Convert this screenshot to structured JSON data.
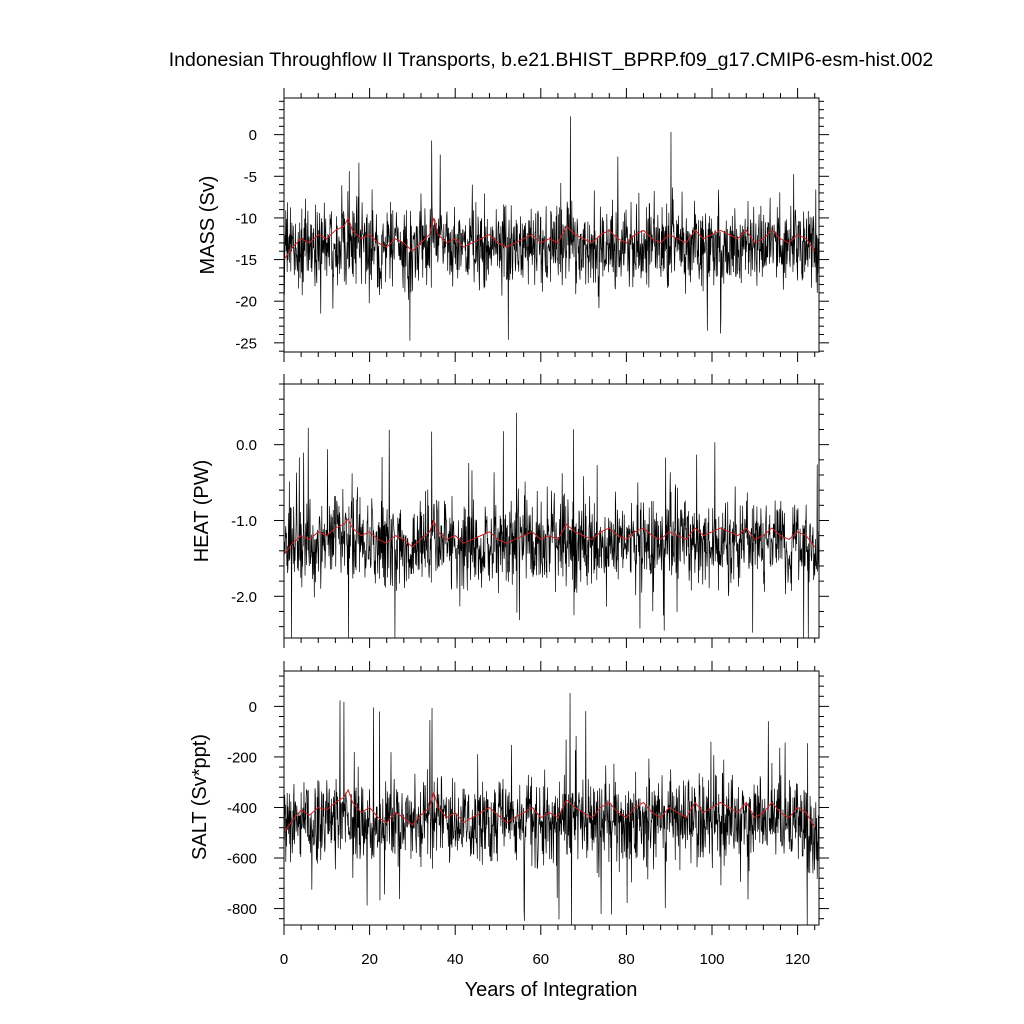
{
  "chart_data": {
    "type": "line",
    "title": "Indonesian Throughflow II Transports, b.e21.BHIST_BPRP.f09_g17.CMIP6-esm-hist.002",
    "xlabel": "Years of Integration",
    "xlim": [
      0,
      125
    ],
    "x_ticks": [
      "0",
      "20",
      "40",
      "60",
      "80",
      "100",
      "120"
    ],
    "panels": [
      {
        "ylabel": "MASS (Sv)",
        "ylim": [
          -26.1,
          4.4
        ],
        "y_ticks": [
          "0",
          "-5",
          "-10",
          "-15",
          "-20",
          "-25"
        ],
        "series": [
          {
            "name": "",
            "color": "#000000",
            "style": "monthly",
            "x": [
              0.5,
              5,
              9.5,
              14.5,
              20,
              24.5,
              30.5,
              35.5,
              40.5,
              45.5,
              50.5,
              55.5,
              60.5,
              65.5,
              70.5,
              75.5,
              78,
              82.5,
              90.5,
              99.5,
              110.5,
              120.5,
              124.5
            ],
            "y": [
              -13.5,
              -14,
              -13,
              -12.5,
              -14,
              -13.5,
              -14,
              -12.5,
              -13.5,
              -14,
              -13.5,
              -13,
              -14,
              -13,
              -13.5,
              -14,
              -13,
              -13.5,
              -13,
              -14,
              -13,
              -13.5,
              -15
            ]
          },
          {
            "name": "",
            "color": "#cc2222",
            "style": "annual",
            "x": [
              0,
              2,
              4,
              6,
              8,
              10,
              12,
              14,
              15,
              16,
              18,
              20,
              22,
              24,
              26,
              28,
              30,
              32,
              34,
              35,
              36,
              38,
              40,
              42,
              44,
              46,
              48,
              50,
              52,
              54,
              56,
              58,
              60,
              62,
              64,
              66,
              68,
              70,
              72,
              74,
              76,
              78,
              80,
              82,
              84,
              86,
              88,
              90,
              92,
              94,
              96,
              98,
              100,
              102,
              104,
              106,
              108,
              110,
              112,
              114,
              116,
              118,
              120,
              122,
              124
            ],
            "y": [
              -15,
              -13.5,
              -12.5,
              -13,
              -12,
              -12.5,
              -11.5,
              -11,
              -10,
              -11.5,
              -12.5,
              -12,
              -13,
              -13.5,
              -12.5,
              -13,
              -14,
              -13,
              -12,
              -10,
              -12,
              -13,
              -12.5,
              -13.5,
              -13,
              -12.5,
              -12,
              -13,
              -13.5,
              -13,
              -12.5,
              -12,
              -13,
              -12.5,
              -13,
              -11,
              -12,
              -12.5,
              -13,
              -12,
              -11.5,
              -12.5,
              -13,
              -12,
              -11.5,
              -12.5,
              -13,
              -12,
              -12.5,
              -13,
              -11.5,
              -12.5,
              -12,
              -11.5,
              -12,
              -12.5,
              -11.5,
              -13,
              -12.5,
              -11.5,
              -12.5,
              -13,
              -12,
              -12.5,
              -14
            ]
          }
        ]
      },
      {
        "ylabel": "HEAT (PW)",
        "ylim": [
          -2.55,
          0.8
        ],
        "y_ticks": [
          "0.0",
          "-1.0",
          "-2.0"
        ],
        "series": [
          {
            "name": "",
            "color": "#000000",
            "style": "monthly",
            "x": [
              0.5,
              5,
              9.5,
              14.5,
              20,
              24.5,
              30.5,
              35.5,
              40.5,
              45.5,
              50.5,
              55.5,
              60.5,
              65.5,
              70.5,
              75.5,
              78,
              82.5,
              90.5,
              99.5,
              110.5,
              120.5,
              124.5
            ],
            "y": [
              -1.3,
              -1.35,
              -1.25,
              -1.2,
              -1.35,
              -1.3,
              -1.35,
              -1.2,
              -1.3,
              -1.35,
              -1.3,
              -1.25,
              -1.35,
              -1.25,
              -1.3,
              -1.35,
              -1.25,
              -1.3,
              -1.25,
              -1.35,
              -1.25,
              -1.3,
              -1.5
            ]
          },
          {
            "name": "",
            "color": "#cc2222",
            "style": "annual",
            "x": [
              0,
              2,
              4,
              6,
              8,
              10,
              12,
              14,
              15,
              16,
              18,
              20,
              22,
              24,
              26,
              28,
              30,
              32,
              34,
              35,
              36,
              38,
              40,
              42,
              44,
              46,
              48,
              50,
              52,
              54,
              56,
              58,
              60,
              62,
              64,
              66,
              68,
              70,
              72,
              74,
              76,
              78,
              80,
              82,
              84,
              86,
              88,
              90,
              92,
              94,
              96,
              98,
              100,
              102,
              104,
              106,
              108,
              110,
              112,
              114,
              116,
              118,
              120,
              122,
              124
            ],
            "y": [
              -1.45,
              -1.3,
              -1.2,
              -1.25,
              -1.15,
              -1.2,
              -1.1,
              -1.05,
              -0.98,
              -1.1,
              -1.2,
              -1.15,
              -1.25,
              -1.3,
              -1.2,
              -1.25,
              -1.35,
              -1.25,
              -1.15,
              -1.0,
              -1.15,
              -1.25,
              -1.2,
              -1.3,
              -1.25,
              -1.2,
              -1.15,
              -1.25,
              -1.3,
              -1.25,
              -1.2,
              -1.15,
              -1.25,
              -1.2,
              -1.25,
              -1.05,
              -1.15,
              -1.2,
              -1.25,
              -1.15,
              -1.1,
              -1.2,
              -1.25,
              -1.15,
              -1.1,
              -1.2,
              -1.25,
              -1.15,
              -1.2,
              -1.25,
              -1.1,
              -1.2,
              -1.15,
              -1.1,
              -1.15,
              -1.2,
              -1.1,
              -1.25,
              -1.2,
              -1.1,
              -1.2,
              -1.25,
              -1.15,
              -1.2,
              -1.35
            ]
          }
        ]
      },
      {
        "ylabel": "SALT (Sv*ppt)",
        "ylim": [
          -865,
          140
        ],
        "y_ticks": [
          "0",
          "-200",
          "-400",
          "-600",
          "-800"
        ],
        "series": [
          {
            "name": "",
            "color": "#000000",
            "style": "monthly",
            "x": [
              0.5,
              5,
              9.5,
              14.5,
              20,
              24.5,
              30.5,
              35.5,
              40.5,
              45.5,
              50.5,
              55.5,
              60.5,
              65.5,
              70.5,
              75.5,
              78,
              82.5,
              90.5,
              99.5,
              110.5,
              120.5,
              124.5
            ],
            "y": [
              -450,
              -470,
              -440,
              -420,
              -470,
              -455,
              -470,
              -420,
              -450,
              -470,
              -455,
              -440,
              -470,
              -440,
              -455,
              -470,
              -440,
              -455,
              -440,
              -470,
              -440,
              -455,
              -520
            ]
          },
          {
            "name": "",
            "color": "#cc2222",
            "style": "annual",
            "x": [
              0,
              2,
              4,
              6,
              8,
              10,
              12,
              14,
              15,
              16,
              18,
              20,
              22,
              24,
              26,
              28,
              30,
              32,
              34,
              35,
              36,
              38,
              40,
              42,
              44,
              46,
              48,
              50,
              52,
              54,
              56,
              58,
              60,
              62,
              64,
              66,
              68,
              70,
              72,
              74,
              76,
              78,
              80,
              82,
              84,
              86,
              88,
              90,
              92,
              94,
              96,
              98,
              100,
              102,
              104,
              106,
              108,
              110,
              112,
              114,
              116,
              118,
              120,
              122,
              124
            ],
            "y": [
              -500,
              -450,
              -410,
              -430,
              -400,
              -410,
              -380,
              -360,
              -330,
              -380,
              -420,
              -400,
              -440,
              -460,
              -420,
              -440,
              -470,
              -430,
              -400,
              -340,
              -400,
              -440,
              -420,
              -460,
              -440,
              -420,
              -400,
              -430,
              -460,
              -440,
              -420,
              -400,
              -440,
              -420,
              -440,
              -370,
              -400,
              -420,
              -440,
              -400,
              -380,
              -420,
              -440,
              -400,
              -380,
              -420,
              -440,
              -400,
              -420,
              -440,
              -380,
              -420,
              -400,
              -380,
              -400,
              -420,
              -380,
              -440,
              -420,
              -380,
              -420,
              -440,
              -400,
              -420,
              -480
            ]
          }
        ]
      }
    ]
  }
}
